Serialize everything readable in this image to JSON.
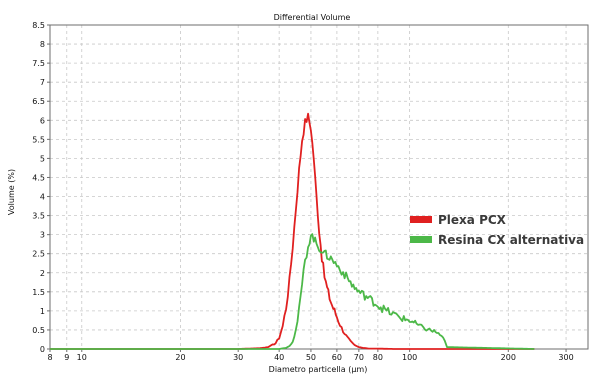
{
  "chart_data": {
    "type": "line",
    "title": "Differential Volume",
    "xlabel": "Diametro particella (µm)",
    "ylabel": "Volume (%)",
    "x_scale": "log",
    "xlim": [
      8,
      350
    ],
    "ylim": [
      0,
      8.5
    ],
    "grid": true,
    "legend_position": "right",
    "y_ticks": [
      0,
      0.5,
      1,
      1.5,
      2,
      2.5,
      3,
      3.5,
      4,
      4.5,
      5,
      5.5,
      6,
      6.5,
      7,
      7.5,
      8,
      8.5
    ],
    "y_tick_labels": [
      "0",
      "0.5",
      "1",
      "1.5",
      "2",
      "2.5",
      "3",
      "3.5",
      "4",
      "4.5",
      "5",
      "5.5",
      "6",
      "6.5",
      "7",
      "7.5",
      "8",
      "8.5"
    ],
    "x_ticks": [
      8,
      9,
      10,
      20,
      30,
      40,
      50,
      60,
      70,
      80,
      100,
      200,
      300
    ],
    "x_tick_labels": [
      "8",
      "9",
      "10",
      "20",
      "30",
      "40",
      "50",
      "60",
      "70",
      "80",
      "100",
      "200",
      "300"
    ],
    "series": [
      {
        "name": "Plexa PCX",
        "color": "#e02020",
        "x": [
          8,
          30,
          35,
          37,
          39,
          40,
          41,
          42,
          43,
          44,
          45,
          46,
          47,
          48,
          49,
          50,
          51,
          52,
          53,
          54,
          55,
          56,
          57,
          58,
          59,
          60,
          62,
          64,
          66,
          68,
          70,
          72,
          75,
          80,
          90,
          240
        ],
        "y": [
          0,
          0,
          0.02,
          0.05,
          0.15,
          0.3,
          0.6,
          1.1,
          1.8,
          2.7,
          3.7,
          4.7,
          5.5,
          5.95,
          6.1,
          5.8,
          5.0,
          4.0,
          3.1,
          2.4,
          1.9,
          1.6,
          1.35,
          1.15,
          1.0,
          0.85,
          0.55,
          0.35,
          0.2,
          0.1,
          0.05,
          0.03,
          0.01,
          0.01,
          0,
          0
        ]
      },
      {
        "name": "Resina CX alternativa",
        "color": "#4cb848",
        "x": [
          8,
          40,
          42,
          43,
          44,
          45,
          46,
          47,
          48,
          49,
          50,
          51,
          52,
          53,
          54,
          55,
          56,
          57,
          58,
          60,
          62,
          64,
          66,
          68,
          70,
          73,
          76,
          80,
          85,
          90,
          95,
          100,
          105,
          110,
          115,
          120,
          125,
          128,
          130,
          240
        ],
        "y": [
          0,
          0,
          0.03,
          0.08,
          0.2,
          0.5,
          1.0,
          1.7,
          2.3,
          2.7,
          3.0,
          2.9,
          2.75,
          2.65,
          2.6,
          2.5,
          2.45,
          2.4,
          2.35,
          2.2,
          2.05,
          1.9,
          1.75,
          1.6,
          1.5,
          1.4,
          1.3,
          1.15,
          1.0,
          0.9,
          0.8,
          0.75,
          0.65,
          0.55,
          0.5,
          0.45,
          0.35,
          0.2,
          0.05,
          0
        ]
      }
    ]
  }
}
